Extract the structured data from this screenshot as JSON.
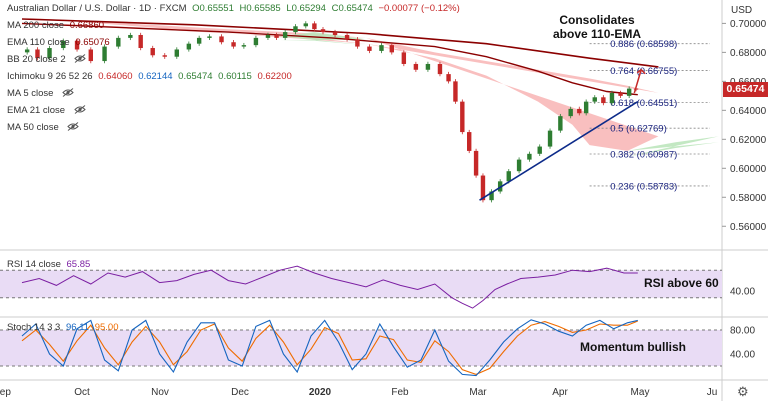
{
  "header": {
    "symbol_line": "Australian Dollar / U.S. Dollar · 1D · FXCM",
    "open": "O0.65551",
    "high": "H0.65585",
    "low": "L0.65294",
    "close": "C0.65474",
    "change": "−0.00077 (−0.12%)",
    "currency": "USD"
  },
  "indicators": [
    {
      "label": "MA 200 close",
      "value": "0.66860",
      "color": "#8b0000",
      "eye": false
    },
    {
      "label": "EMA 110 close",
      "value": "0.65076",
      "color": "#8b0000",
      "eye": false
    },
    {
      "label": "BB 20 close 2",
      "value": "",
      "color": "#999999",
      "eye": true
    },
    {
      "label": "Ichimoku 9 26 52 26",
      "values": [
        {
          "v": "0.64060",
          "c": "#c62828"
        },
        {
          "v": "0.62144",
          "c": "#1565c0"
        },
        {
          "v": "0.65474",
          "c": "#2e7d32"
        },
        {
          "v": "0.60115",
          "c": "#2e7d32"
        },
        {
          "v": "0.62200",
          "c": "#c62828"
        }
      ],
      "eye": false
    },
    {
      "label": "MA 5 close",
      "value": "",
      "color": "#999999",
      "eye": true
    },
    {
      "label": "EMA 21 close",
      "value": "",
      "color": "#999999",
      "eye": true
    },
    {
      "label": "MA 50 close",
      "value": "",
      "color": "#999999",
      "eye": true
    }
  ],
  "annotations": {
    "main": "Consolidates\nabove 110-EMA",
    "rsi": "RSI above 60",
    "stoch": "Momentum bullish"
  },
  "rsi_panel": {
    "label": "RSI 14 close",
    "value": "65.85",
    "value_color": "#7b1fa2"
  },
  "stoch_panel": {
    "label": "Stoch 14 3 3",
    "k": "96.11",
    "d": "95.00",
    "k_color": "#1565c0",
    "d_color": "#ef6c00"
  },
  "current_price": "0.65474",
  "colors": {
    "up": "#2e7d32",
    "down": "#c62828",
    "ema": "#8b0000",
    "cloud_red": "#f8b4b4",
    "cloud_green": "#b9e4b9",
    "rsi": "#7b1fa2",
    "band": "#e9dcf5",
    "trend": "#0d2b8a"
  },
  "chart_data": {
    "type": "line",
    "x_ticks": [
      "Sep",
      "Oct",
      "Nov",
      "Dec",
      "2020",
      "Feb",
      "Mar",
      "Apr",
      "May",
      "Ju"
    ],
    "y_ticks": [
      "0.70000",
      "0.68000",
      "0.66000",
      "0.64000",
      "0.62000",
      "0.60000",
      "0.58000",
      "0.56000"
    ],
    "ylim": [
      0.545,
      0.712
    ],
    "fib_levels": [
      {
        "label": "0.886 (0.68598)",
        "value": 0.68598
      },
      {
        "label": "0.764 (0.66755)",
        "value": 0.66755
      },
      {
        "label": "0.618 (0.64551)",
        "value": 0.64551
      },
      {
        "label": "0.5 (0.62769)",
        "value": 0.62769
      },
      {
        "label": "0.382 (0.60987)",
        "value": 0.60987
      },
      {
        "label": "0.236 (0.58783)",
        "value": 0.58783
      }
    ],
    "price_path": [
      [
        0,
        0.68
      ],
      [
        6,
        0.682
      ],
      [
        12,
        0.676
      ],
      [
        20,
        0.683
      ],
      [
        28,
        0.688
      ],
      [
        36,
        0.682
      ],
      [
        44,
        0.674
      ],
      [
        52,
        0.684
      ],
      [
        60,
        0.69
      ],
      [
        66,
        0.692
      ],
      [
        72,
        0.683
      ],
      [
        80,
        0.678
      ],
      [
        86,
        0.677
      ],
      [
        94,
        0.682
      ],
      [
        100,
        0.686
      ],
      [
        106,
        0.69
      ],
      [
        112,
        0.691
      ],
      [
        120,
        0.687
      ],
      [
        126,
        0.684
      ],
      [
        132,
        0.685
      ],
      [
        140,
        0.69
      ],
      [
        146,
        0.692
      ],
      [
        150,
        0.69
      ],
      [
        156,
        0.694
      ],
      [
        162,
        0.698
      ],
      [
        168,
        0.7
      ],
      [
        172,
        0.696
      ],
      [
        178,
        0.694
      ],
      [
        186,
        0.692
      ],
      [
        192,
        0.689
      ],
      [
        198,
        0.684
      ],
      [
        206,
        0.681
      ],
      [
        212,
        0.685
      ],
      [
        218,
        0.68
      ],
      [
        226,
        0.672
      ],
      [
        232,
        0.668
      ],
      [
        240,
        0.672
      ],
      [
        246,
        0.665
      ],
      [
        250,
        0.66
      ],
      [
        254,
        0.646
      ],
      [
        258,
        0.625
      ],
      [
        262,
        0.612
      ],
      [
        266,
        0.595
      ],
      [
        270,
        0.578
      ],
      [
        276,
        0.584
      ],
      [
        280,
        0.591
      ],
      [
        286,
        0.598
      ],
      [
        292,
        0.606
      ],
      [
        298,
        0.61
      ],
      [
        304,
        0.615
      ],
      [
        310,
        0.626
      ],
      [
        316,
        0.636
      ],
      [
        322,
        0.641
      ],
      [
        326,
        0.638
      ],
      [
        330,
        0.646
      ],
      [
        336,
        0.649
      ],
      [
        340,
        0.645
      ],
      [
        346,
        0.652
      ],
      [
        350,
        0.65
      ],
      [
        356,
        0.655
      ],
      [
        358,
        0.6547
      ]
    ],
    "ema110_path": [
      [
        0,
        0.7
      ],
      [
        60,
        0.697
      ],
      [
        120,
        0.694
      ],
      [
        180,
        0.69
      ],
      [
        240,
        0.684
      ],
      [
        270,
        0.677
      ],
      [
        300,
        0.667
      ],
      [
        320,
        0.659
      ],
      [
        340,
        0.653
      ],
      [
        358,
        0.6508
      ]
    ],
    "ma200_path": [
      [
        0,
        0.703
      ],
      [
        100,
        0.699
      ],
      [
        200,
        0.693
      ],
      [
        270,
        0.686
      ],
      [
        330,
        0.676
      ],
      [
        370,
        0.67
      ]
    ],
    "rsi": {
      "ylim": [
        5,
        95
      ],
      "y_ticks": [
        "40.00"
      ],
      "band": [
        30,
        70
      ],
      "path": [
        [
          0,
          52
        ],
        [
          10,
          58
        ],
        [
          20,
          48
        ],
        [
          30,
          62
        ],
        [
          40,
          50
        ],
        [
          50,
          66
        ],
        [
          60,
          60
        ],
        [
          70,
          68
        ],
        [
          80,
          52
        ],
        [
          90,
          55
        ],
        [
          100,
          64
        ],
        [
          110,
          70
        ],
        [
          120,
          55
        ],
        [
          130,
          50
        ],
        [
          140,
          60
        ],
        [
          150,
          70
        ],
        [
          160,
          76
        ],
        [
          170,
          66
        ],
        [
          180,
          58
        ],
        [
          190,
          52
        ],
        [
          200,
          46
        ],
        [
          210,
          56
        ],
        [
          220,
          48
        ],
        [
          230,
          42
        ],
        [
          240,
          50
        ],
        [
          250,
          30
        ],
        [
          256,
          22
        ],
        [
          262,
          15
        ],
        [
          268,
          26
        ],
        [
          275,
          42
        ],
        [
          282,
          50
        ],
        [
          290,
          58
        ],
        [
          300,
          60
        ],
        [
          310,
          63
        ],
        [
          320,
          70
        ],
        [
          330,
          68
        ],
        [
          340,
          73
        ],
        [
          350,
          66
        ],
        [
          358,
          66
        ]
      ]
    },
    "stoch": {
      "ylim": [
        0,
        100
      ],
      "y_ticks": [
        "80.00",
        "40.00"
      ],
      "band": [
        20,
        80
      ],
      "k_path": [
        [
          0,
          70
        ],
        [
          8,
          90
        ],
        [
          16,
          40
        ],
        [
          24,
          20
        ],
        [
          32,
          82
        ],
        [
          40,
          96
        ],
        [
          48,
          30
        ],
        [
          56,
          12
        ],
        [
          64,
          80
        ],
        [
          72,
          96
        ],
        [
          80,
          40
        ],
        [
          88,
          10
        ],
        [
          96,
          60
        ],
        [
          104,
          92
        ],
        [
          112,
          92
        ],
        [
          120,
          30
        ],
        [
          128,
          20
        ],
        [
          136,
          86
        ],
        [
          144,
          96
        ],
        [
          152,
          40
        ],
        [
          160,
          10
        ],
        [
          168,
          70
        ],
        [
          176,
          96
        ],
        [
          184,
          60
        ],
        [
          192,
          14
        ],
        [
          200,
          40
        ],
        [
          208,
          90
        ],
        [
          216,
          52
        ],
        [
          224,
          18
        ],
        [
          232,
          30
        ],
        [
          240,
          80
        ],
        [
          248,
          28
        ],
        [
          256,
          6
        ],
        [
          264,
          4
        ],
        [
          272,
          30
        ],
        [
          280,
          60
        ],
        [
          288,
          82
        ],
        [
          296,
          97
        ],
        [
          304,
          90
        ],
        [
          312,
          78
        ],
        [
          320,
          70
        ],
        [
          328,
          88
        ],
        [
          336,
          96
        ],
        [
          344,
          82
        ],
        [
          352,
          92
        ],
        [
          358,
          96
        ]
      ],
      "d_path": [
        [
          0,
          62
        ],
        [
          8,
          80
        ],
        [
          16,
          56
        ],
        [
          24,
          28
        ],
        [
          32,
          62
        ],
        [
          40,
          88
        ],
        [
          48,
          50
        ],
        [
          56,
          22
        ],
        [
          64,
          60
        ],
        [
          72,
          86
        ],
        [
          80,
          60
        ],
        [
          88,
          22
        ],
        [
          96,
          44
        ],
        [
          104,
          80
        ],
        [
          112,
          90
        ],
        [
          120,
          50
        ],
        [
          128,
          28
        ],
        [
          136,
          66
        ],
        [
          144,
          88
        ],
        [
          152,
          60
        ],
        [
          160,
          22
        ],
        [
          168,
          48
        ],
        [
          176,
          84
        ],
        [
          184,
          74
        ],
        [
          192,
          30
        ],
        [
          200,
          32
        ],
        [
          208,
          70
        ],
        [
          216,
          64
        ],
        [
          224,
          30
        ],
        [
          232,
          26
        ],
        [
          240,
          62
        ],
        [
          248,
          44
        ],
        [
          256,
          14
        ],
        [
          264,
          6
        ],
        [
          272,
          16
        ],
        [
          280,
          44
        ],
        [
          288,
          70
        ],
        [
          296,
          88
        ],
        [
          304,
          94
        ],
        [
          312,
          86
        ],
        [
          320,
          76
        ],
        [
          328,
          80
        ],
        [
          336,
          90
        ],
        [
          344,
          88
        ],
        [
          352,
          88
        ],
        [
          358,
          95
        ]
      ]
    }
  }
}
